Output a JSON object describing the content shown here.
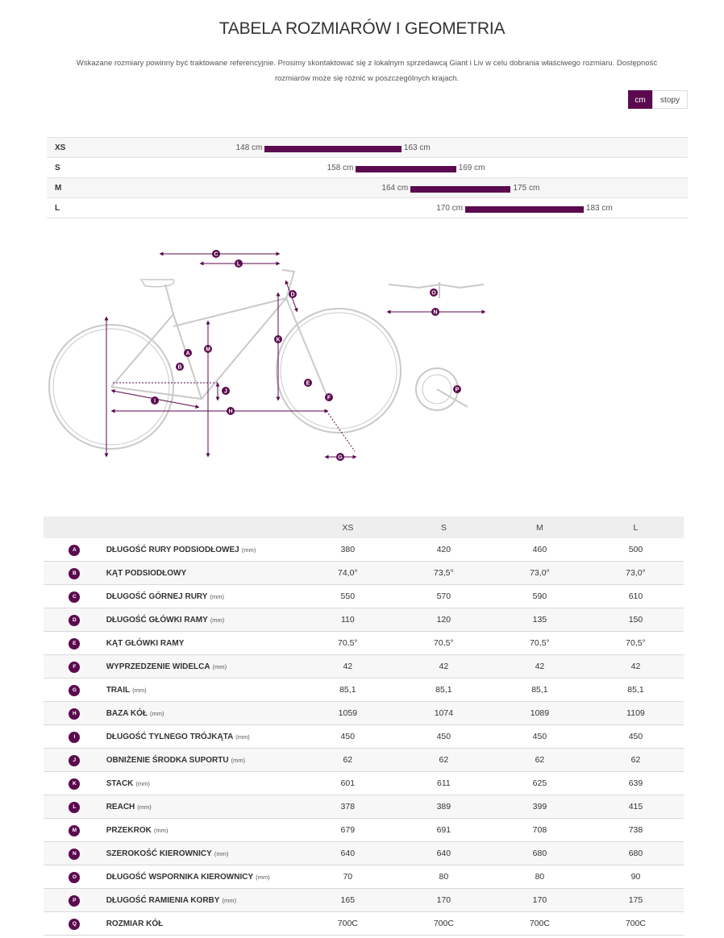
{
  "page": {
    "title": "TABELA ROZMIARÓW I GEOMETRIA",
    "intro_line1": "Wskazane rozmiary powinny być traktowane referencyjnie. Prosimy skontaktować się z lokalnym sprzedawcą Giant i Liv w celu dobrania właściwego rozmiaru. Dostępność",
    "intro_line2": "rozmiarów może się różnić w poszczególnych krajach."
  },
  "unit_toggle": {
    "active": "cm",
    "inactive": "stopy"
  },
  "colors": {
    "accent": "#5b0a4f"
  },
  "size_range": {
    "scale_min_cm": 140,
    "scale_max_cm": 190,
    "rows": [
      {
        "size": "XS",
        "min": 148,
        "max": 163,
        "min_label": "148 cm",
        "max_label": "163 cm"
      },
      {
        "size": "S",
        "min": 158,
        "max": 169,
        "min_label": "158 cm",
        "max_label": "169 cm"
      },
      {
        "size": "M",
        "min": 164,
        "max": 175,
        "min_label": "164 cm",
        "max_label": "175 cm"
      },
      {
        "size": "L",
        "min": 170,
        "max": 183,
        "min_label": "170 cm",
        "max_label": "183 cm"
      }
    ]
  },
  "diagram": {
    "markers": [
      "A",
      "B",
      "C",
      "D",
      "E",
      "F",
      "G",
      "H",
      "I",
      "J",
      "K",
      "L",
      "M",
      "N",
      "O",
      "P"
    ]
  },
  "table": {
    "headers": [
      "",
      "",
      "XS",
      "S",
      "M",
      "L"
    ],
    "rows": [
      {
        "letter": "A",
        "name": "DŁUGOŚĆ RURY PODSIODŁOWEJ",
        "unit": "(mm)",
        "values": [
          "380",
          "420",
          "460",
          "500"
        ]
      },
      {
        "letter": "B",
        "name": "KĄT PODSIODŁOWY",
        "unit": "",
        "values": [
          "74,0°",
          "73,5°",
          "73,0°",
          "73,0°"
        ]
      },
      {
        "letter": "C",
        "name": "DŁUGOŚĆ GÓRNEJ RURY",
        "unit": "(mm)",
        "values": [
          "550",
          "570",
          "590",
          "610"
        ]
      },
      {
        "letter": "D",
        "name": "DŁUGOŚĆ GŁÓWKI RAMY",
        "unit": "(mm)",
        "values": [
          "110",
          "120",
          "135",
          "150"
        ]
      },
      {
        "letter": "E",
        "name": "KĄT GŁÓWKI RAMY",
        "unit": "",
        "values": [
          "70,5°",
          "70,5°",
          "70,5°",
          "70,5°"
        ]
      },
      {
        "letter": "F",
        "name": "WYPRZEDZENIE WIDELCA",
        "unit": "(mm)",
        "values": [
          "42",
          "42",
          "42",
          "42"
        ]
      },
      {
        "letter": "G",
        "name": "TRAIL",
        "unit": "(mm)",
        "values": [
          "85,1",
          "85,1",
          "85,1",
          "85,1"
        ]
      },
      {
        "letter": "H",
        "name": "BAZA KÓŁ",
        "unit": "(mm)",
        "values": [
          "1059",
          "1074",
          "1089",
          "1109"
        ]
      },
      {
        "letter": "I",
        "name": "DŁUGOŚĆ TYLNEGO TRÓJKĄTA",
        "unit": "(mm)",
        "values": [
          "450",
          "450",
          "450",
          "450"
        ]
      },
      {
        "letter": "J",
        "name": "OBNIŻENIE ŚRODKA SUPORTU",
        "unit": "(mm)",
        "values": [
          "62",
          "62",
          "62",
          "62"
        ]
      },
      {
        "letter": "K",
        "name": "STACK",
        "unit": "(mm)",
        "values": [
          "601",
          "611",
          "625",
          "639"
        ]
      },
      {
        "letter": "L",
        "name": "REACH",
        "unit": "(mm)",
        "values": [
          "378",
          "389",
          "399",
          "415"
        ]
      },
      {
        "letter": "M",
        "name": "PRZEKROK",
        "unit": "(mm)",
        "values": [
          "679",
          "691",
          "708",
          "738"
        ]
      },
      {
        "letter": "N",
        "name": "SZEROKOŚĆ KIEROWNICY",
        "unit": "(mm)",
        "values": [
          "640",
          "640",
          "680",
          "680"
        ]
      },
      {
        "letter": "O",
        "name": "DŁUGOŚĆ WSPORNIKA KIEROWNICY",
        "unit": "(mm)",
        "values": [
          "70",
          "80",
          "80",
          "90"
        ]
      },
      {
        "letter": "P",
        "name": "DŁUGOŚĆ RAMIENIA KORBY",
        "unit": "(mm)",
        "values": [
          "165",
          "170",
          "170",
          "175"
        ]
      },
      {
        "letter": "Q",
        "name": "ROZMIAR KÓŁ",
        "unit": "",
        "values": [
          "700C",
          "700C",
          "700C",
          "700C"
        ]
      }
    ]
  }
}
